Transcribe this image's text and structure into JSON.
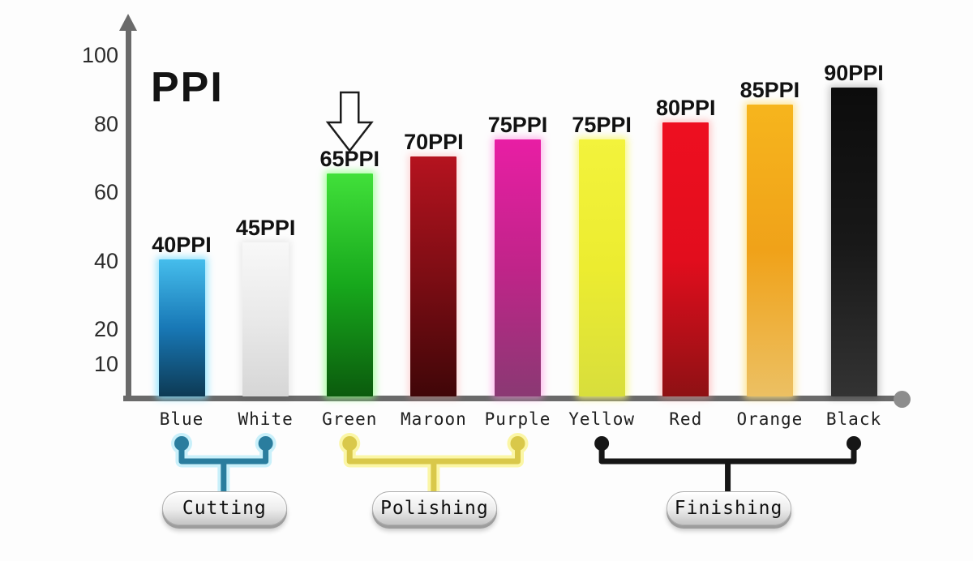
{
  "chart_data": {
    "type": "bar",
    "title": "PPI",
    "categories": [
      "Blue",
      "White",
      "Green",
      "Maroon",
      "Purple",
      "Yellow",
      "Red",
      "Orange",
      "Black"
    ],
    "values": [
      40,
      45,
      65,
      70,
      75,
      75,
      80,
      85,
      90
    ],
    "value_labels": [
      "40PPI",
      "45PPI",
      "65PPI",
      "70PPI",
      "75PPI",
      "75PPI",
      "80PPI",
      "85PPI",
      "90PPI"
    ],
    "xlabel": "",
    "ylabel": "",
    "yticks": [
      10,
      20,
      40,
      60,
      80,
      100
    ],
    "ylim": [
      0,
      105
    ],
    "grid": false,
    "legend": "none",
    "axis_color": "#6a6a6a",
    "axis_end_dot_color": "#8d8d8d",
    "bar_styles": [
      {
        "top": "#45bdec",
        "mid": "#1878b6",
        "bottom": "#0d3a54",
        "glow": "rgba(130,225,255,0.85)"
      },
      {
        "top": "#f8f8f8",
        "mid": "#e9e9e9",
        "bottom": "#d6d6d6",
        "glow": "rgba(0,0,0,0.08)"
      },
      {
        "top": "#41e03a",
        "mid": "#17a81c",
        "bottom": "#0b5b0d",
        "glow": "rgba(140,255,130,0.75)"
      },
      {
        "top": "#b5131f",
        "mid": "#7d0d14",
        "bottom": "#400608",
        "glow": "rgba(255,150,150,0.35)"
      },
      {
        "top": "#e81ea4",
        "mid": "#c02489",
        "bottom": "#8a3973",
        "glow": "rgba(255,140,225,0.6)"
      },
      {
        "top": "#f3f33c",
        "mid": "#ecec30",
        "bottom": "#d8de3c",
        "glow": "rgba(250,250,120,0.9)"
      },
      {
        "top": "#ee0f20",
        "mid": "#e20d1d",
        "bottom": "#8e1114",
        "glow": "rgba(255,150,150,0.5)"
      },
      {
        "top": "#f6b51d",
        "mid": "#f0a219",
        "bottom": "#ecc063",
        "glow": "rgba(255,225,130,0.85)"
      },
      {
        "top": "#0c0c0c",
        "mid": "#181818",
        "bottom": "#333333",
        "glow": "rgba(0,0,0,0.2)"
      }
    ],
    "groups": [
      {
        "label": "Cutting",
        "from": "Blue",
        "to": "White",
        "line_color": "#2a7d9e",
        "glow_color": "#c9f0fa"
      },
      {
        "label": "Polishing",
        "from": "Green",
        "to": "Purple",
        "line_color": "#d9c84a",
        "glow_color": "#fbf6a6"
      },
      {
        "label": "Finishing",
        "from": "Yellow",
        "to": "Black",
        "line_color": "#161616",
        "glow_color": ""
      }
    ],
    "annotation": {
      "shape": "hollow-down-arrow",
      "target_category": "Green",
      "outline_color": "#1c1c1c",
      "fill_color": "#ffffff"
    }
  }
}
